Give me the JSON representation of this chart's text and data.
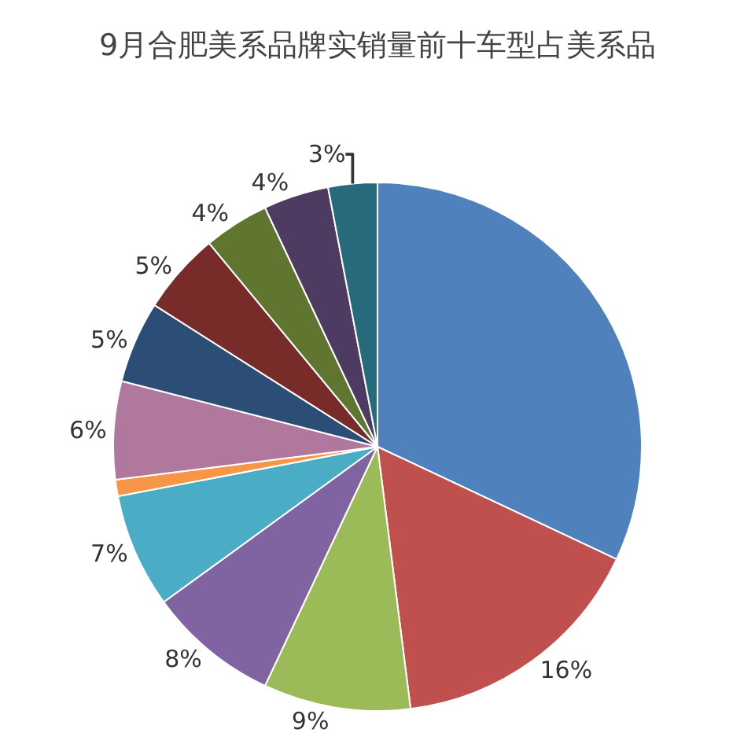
{
  "chart_data": {
    "type": "pie",
    "title": "9月合肥美系品牌实销量前十车型占美系品",
    "categories": [
      null,
      null,
      null,
      null,
      null,
      null,
      null,
      null,
      null,
      null,
      null,
      null
    ],
    "values": [
      32,
      16,
      9,
      8,
      7,
      1,
      6,
      5,
      5,
      4,
      4,
      3
    ],
    "colors": [
      "#4f81bd",
      "#c0504d",
      "#9bbb59",
      "#8064a2",
      "#4bacc6",
      "#f79646",
      "#b0789c",
      "#2c4d75",
      "#772c2a",
      "#5f7530",
      "#4d3b62",
      "#276a7c"
    ],
    "value_labels": [
      null,
      "16%",
      "9%",
      "8%",
      "7%",
      null,
      "6%",
      "5%",
      "5%",
      "4%",
      "4%",
      "3%"
    ],
    "legend": false
  }
}
